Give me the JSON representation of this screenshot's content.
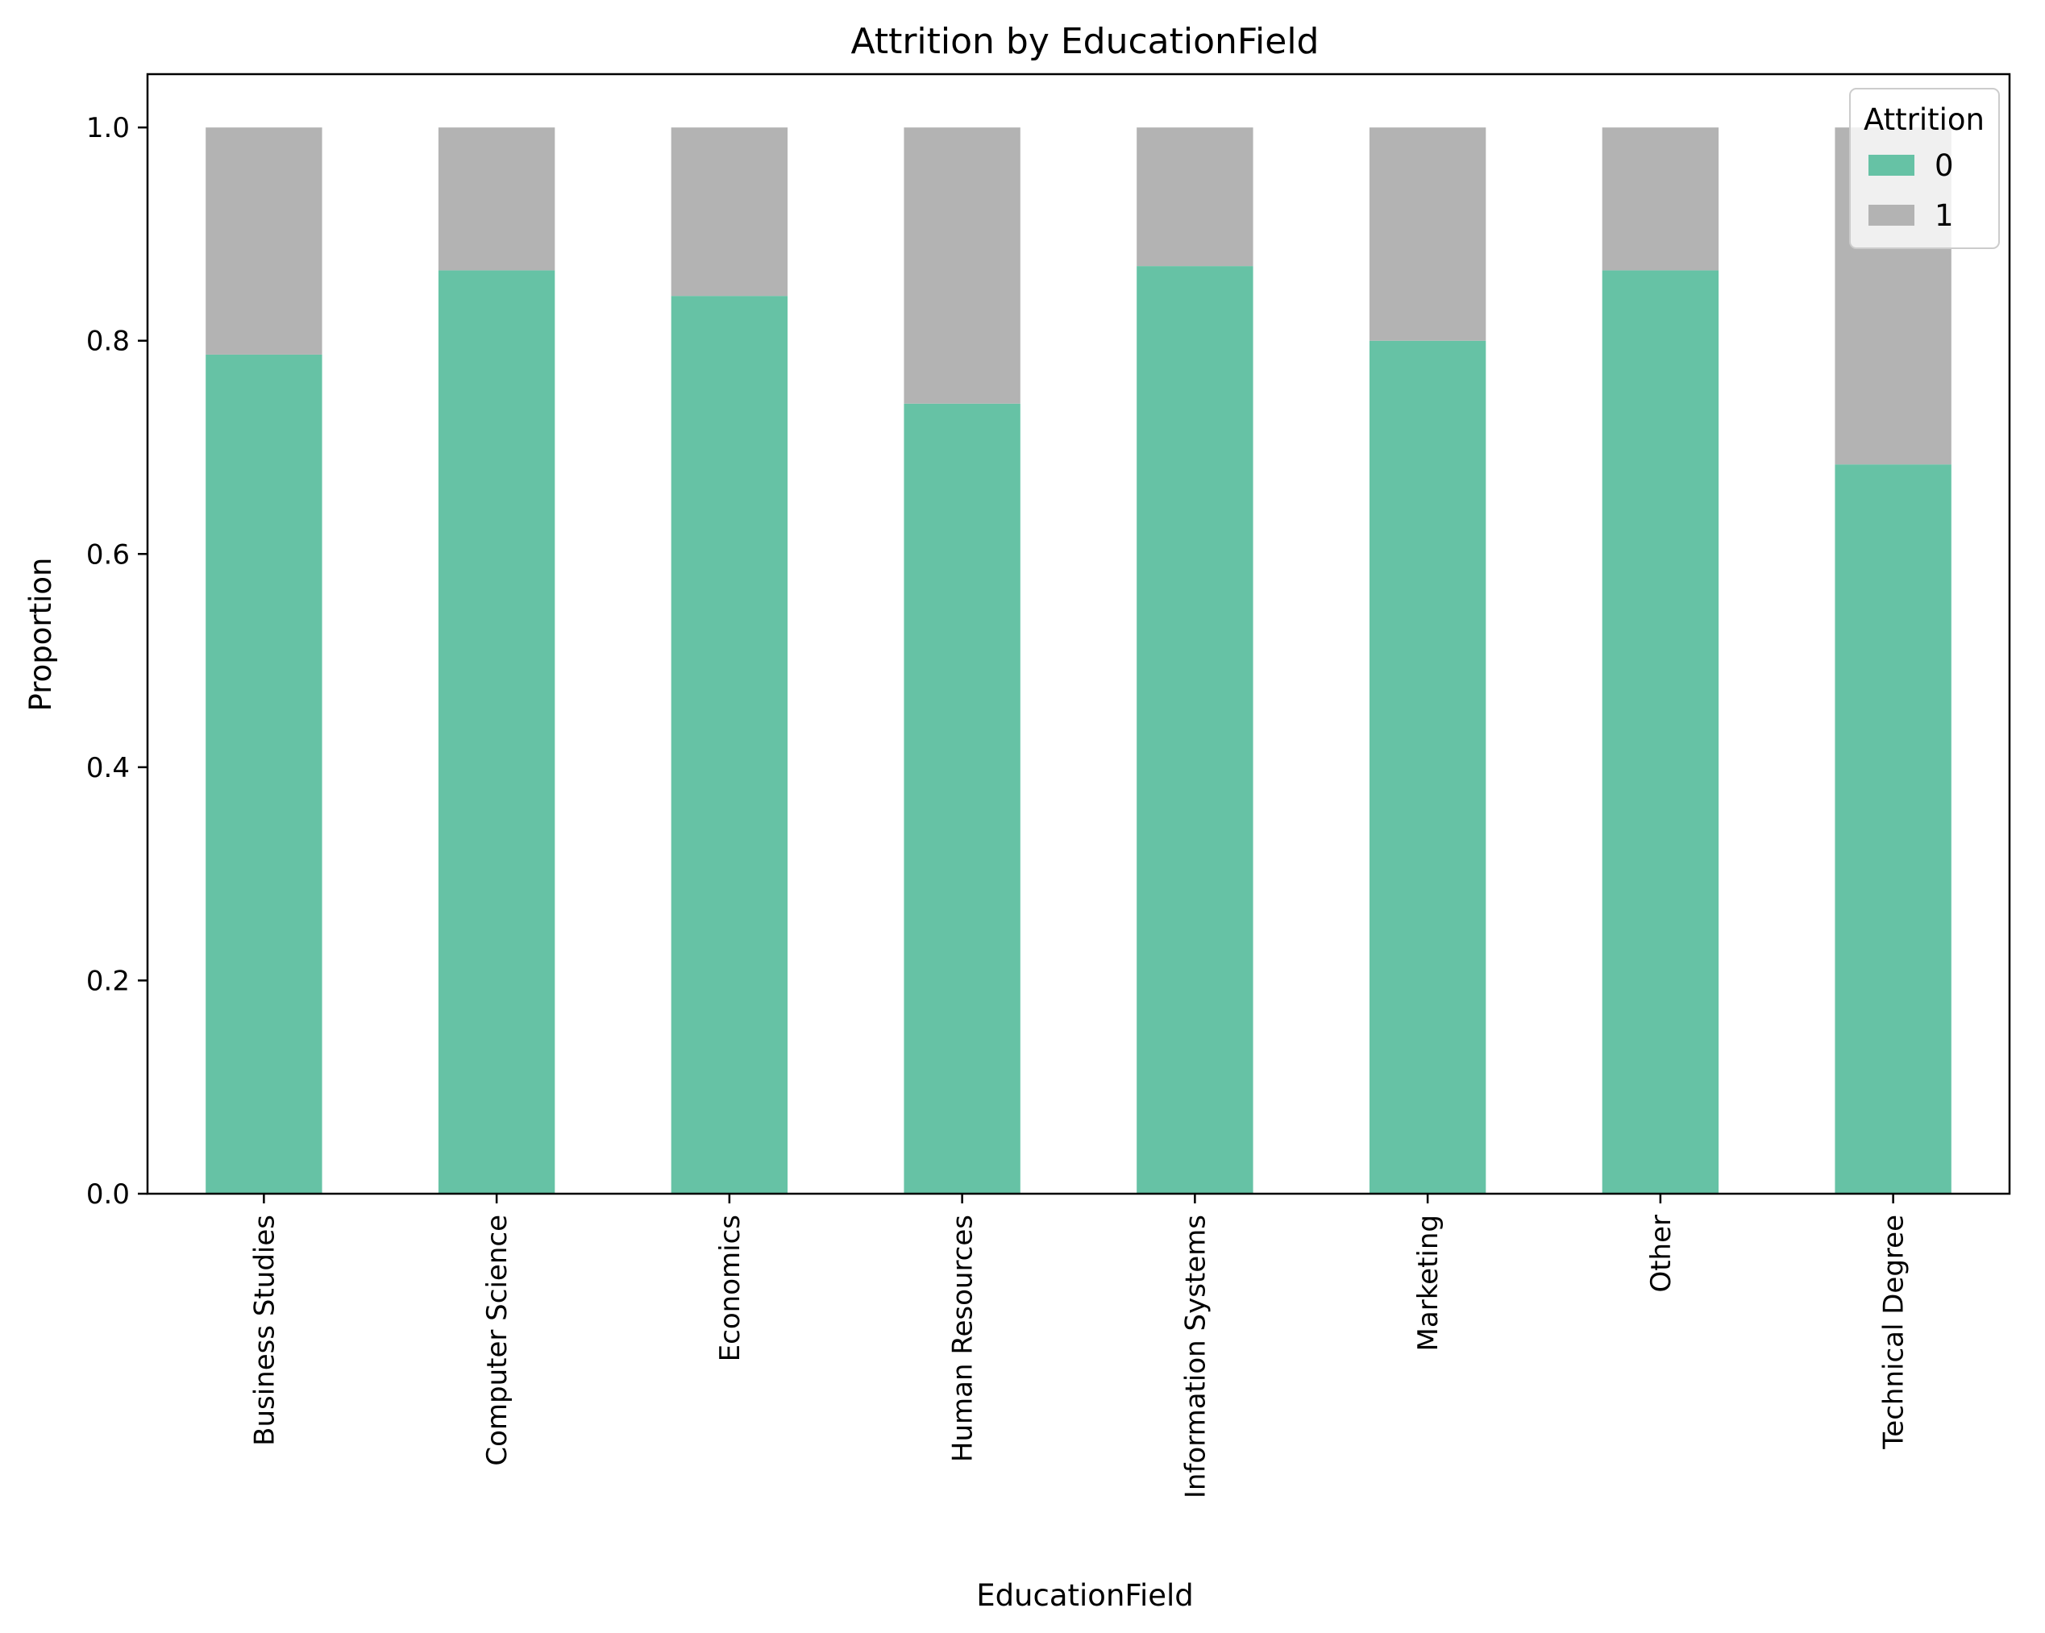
{
  "chart_data": {
    "type": "bar",
    "stacked": true,
    "title": "Attrition by EducationField",
    "xlabel": "EducationField",
    "ylabel": "Proportion",
    "ylim": [
      0,
      1.05
    ],
    "yticks": [
      "0.0",
      "0.2",
      "0.4",
      "0.6",
      "0.8",
      "1.0"
    ],
    "grid": false,
    "categories": [
      "Business Studies",
      "Computer Science",
      "Economics",
      "Human Resources",
      "Information Systems",
      "Marketing",
      "Other",
      "Technical Degree"
    ],
    "series": [
      {
        "name": "0",
        "color": "#66c2a5",
        "values": [
          0.787,
          0.866,
          0.842,
          0.741,
          0.87,
          0.8,
          0.866,
          0.684
        ]
      },
      {
        "name": "1",
        "color": "#b3b3b3",
        "values": [
          0.213,
          0.134,
          0.158,
          0.259,
          0.13,
          0.2,
          0.134,
          0.316
        ]
      }
    ],
    "legend": {
      "title": "Attrition",
      "placement": "top-right"
    }
  }
}
